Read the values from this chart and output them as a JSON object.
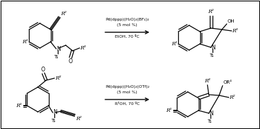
{
  "bg_color": "#ffffff",
  "fig_width": 3.78,
  "fig_height": 1.88,
  "dpi": 100,
  "reaction1": {
    "line1": "Pd(dppp)(H₂O)₂(BF₄)₂",
    "line2": "(5 mol %)",
    "line3": "EtOH, 70 ºC"
  },
  "reaction2": {
    "line1": "Pd(dppp)(H₂O)₂(OTf)₂",
    "line2": "(5 mol %)",
    "line3": "R⁴OH, 70 ºC"
  }
}
